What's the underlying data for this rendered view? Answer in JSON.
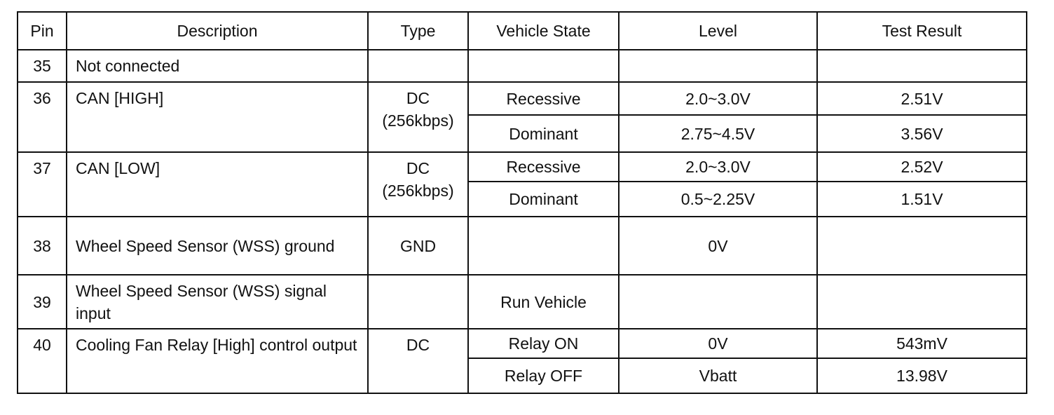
{
  "headers": [
    "Pin",
    "Description",
    "Type",
    "Vehicle State",
    "Level",
    "Test Result"
  ],
  "rows": [
    {
      "pin": "35",
      "description": "Not connected",
      "type": "",
      "states": [
        {
          "state": "",
          "level": "",
          "result": ""
        }
      ]
    },
    {
      "pin": "36",
      "description": "CAN [HIGH]",
      "type": "DC (256kbps)",
      "states": [
        {
          "state": "Recessive",
          "level": "2.0~3.0V",
          "result": "2.51V"
        },
        {
          "state": "Dominant",
          "level": "2.75~4.5V",
          "result": "3.56V"
        }
      ]
    },
    {
      "pin": "37",
      "description": "CAN [LOW]",
      "type": "DC (256kbps)",
      "states": [
        {
          "state": "Recessive",
          "level": "2.0~3.0V",
          "result": "2.52V"
        },
        {
          "state": "Dominant",
          "level": "0.5~2.25V",
          "result": "1.51V"
        }
      ]
    },
    {
      "pin": "38",
      "description": "Wheel Speed Sensor (WSS) ground",
      "type": "GND",
      "states": [
        {
          "state": "",
          "level": "0V",
          "result": ""
        }
      ]
    },
    {
      "pin": "39",
      "description": "Wheel Speed Sensor (WSS) signal input",
      "type": "",
      "states": [
        {
          "state": "Run Vehicle",
          "level": "",
          "result": ""
        }
      ]
    },
    {
      "pin": "40",
      "description": "Cooling Fan Relay [High] control output",
      "type": "DC",
      "states": [
        {
          "state": "Relay ON",
          "level": "0V",
          "result": "543mV"
        },
        {
          "state": "Relay OFF",
          "level": "Vbatt",
          "result": "13.98V"
        }
      ]
    }
  ]
}
